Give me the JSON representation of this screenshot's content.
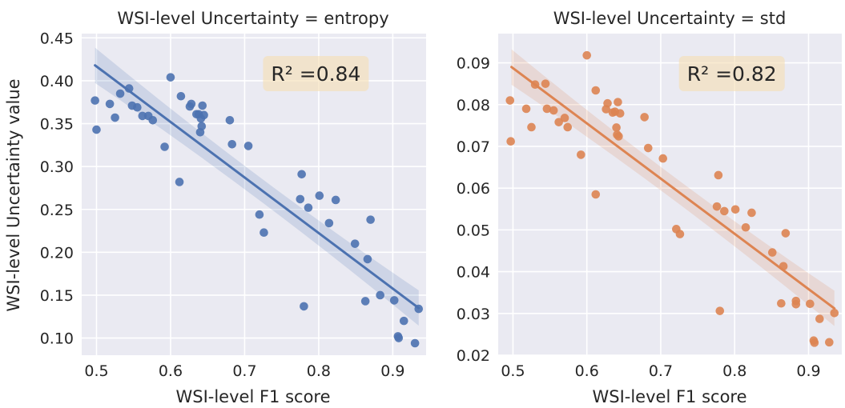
{
  "figure": {
    "ylabel": "WSI-level Uncertainty value"
  },
  "colors": {
    "background": "#eaeaf2",
    "grid": "#ffffff",
    "blue": "#4c72b0",
    "orange": "#dd8452",
    "annotation_bg": "#f5deb3"
  },
  "chart_data": [
    {
      "type": "scatter",
      "title": "WSI-level Uncertainty = entropy",
      "xlabel": "WSI-level F1 score",
      "ylabel": "WSI-level Uncertainty value",
      "annotation": "R² =0.84",
      "xlim": [
        0.48,
        0.945
      ],
      "ylim": [
        0.08,
        0.455
      ],
      "xticks": [
        0.5,
        0.6,
        0.7,
        0.8,
        0.9
      ],
      "xtick_labels": [
        "0.5",
        "0.6",
        "0.7",
        "0.8",
        "0.9"
      ],
      "yticks": [
        0.1,
        0.15,
        0.2,
        0.25,
        0.3,
        0.35,
        0.4,
        0.45
      ],
      "ytick_labels": [
        "0.10",
        "0.15",
        "0.20",
        "0.25",
        "0.30",
        "0.35",
        "0.40",
        "0.45"
      ],
      "grid": true,
      "color": "#4c72b0",
      "regression": {
        "x_start": 0.498,
        "y_start": 0.418,
        "x_end": 0.935,
        "y_end": 0.135
      },
      "points": [
        [
          0.498,
          0.377
        ],
        [
          0.5,
          0.343
        ],
        [
          0.518,
          0.373
        ],
        [
          0.525,
          0.357
        ],
        [
          0.532,
          0.385
        ],
        [
          0.544,
          0.391
        ],
        [
          0.548,
          0.371
        ],
        [
          0.555,
          0.369
        ],
        [
          0.562,
          0.359
        ],
        [
          0.57,
          0.359
        ],
        [
          0.576,
          0.354
        ],
        [
          0.592,
          0.323
        ],
        [
          0.6,
          0.404
        ],
        [
          0.612,
          0.282
        ],
        [
          0.614,
          0.382
        ],
        [
          0.626,
          0.37
        ],
        [
          0.628,
          0.373
        ],
        [
          0.635,
          0.361
        ],
        [
          0.638,
          0.361
        ],
        [
          0.64,
          0.34
        ],
        [
          0.641,
          0.356
        ],
        [
          0.642,
          0.347
        ],
        [
          0.643,
          0.371
        ],
        [
          0.645,
          0.36
        ],
        [
          0.68,
          0.354
        ],
        [
          0.683,
          0.326
        ],
        [
          0.705,
          0.324
        ],
        [
          0.72,
          0.244
        ],
        [
          0.726,
          0.223
        ],
        [
          0.775,
          0.262
        ],
        [
          0.777,
          0.291
        ],
        [
          0.78,
          0.137
        ],
        [
          0.786,
          0.252
        ],
        [
          0.801,
          0.266
        ],
        [
          0.814,
          0.234
        ],
        [
          0.823,
          0.261
        ],
        [
          0.849,
          0.21
        ],
        [
          0.863,
          0.143
        ],
        [
          0.866,
          0.192
        ],
        [
          0.87,
          0.238
        ],
        [
          0.883,
          0.15
        ],
        [
          0.902,
          0.144
        ],
        [
          0.907,
          0.102
        ],
        [
          0.908,
          0.1
        ],
        [
          0.915,
          0.12
        ],
        [
          0.93,
          0.094
        ],
        [
          0.935,
          0.134
        ]
      ]
    },
    {
      "type": "scatter",
      "title": "WSI-level Uncertainty = std",
      "xlabel": "WSI-level F1 score",
      "ylabel": "",
      "annotation": "R² =0.82",
      "xlim": [
        0.48,
        0.945
      ],
      "ylim": [
        0.02,
        0.097
      ],
      "xticks": [
        0.5,
        0.6,
        0.7,
        0.8,
        0.9
      ],
      "xtick_labels": [
        "0.5",
        "0.6",
        "0.7",
        "0.8",
        "0.9"
      ],
      "yticks": [
        0.02,
        0.03,
        0.04,
        0.05,
        0.06,
        0.07,
        0.08,
        0.09
      ],
      "ytick_labels": [
        "0.02",
        "0.03",
        "0.04",
        "0.05",
        "0.06",
        "0.07",
        "0.08",
        "0.09"
      ],
      "grid": true,
      "color": "#dd8452",
      "regression": {
        "x_start": 0.498,
        "y_start": 0.089,
        "x_end": 0.935,
        "y_end": 0.0312
      },
      "points": [
        [
          0.496,
          0.081
        ],
        [
          0.497,
          0.0712
        ],
        [
          0.518,
          0.079
        ],
        [
          0.525,
          0.0746
        ],
        [
          0.53,
          0.0848
        ],
        [
          0.544,
          0.085
        ],
        [
          0.546,
          0.079
        ],
        [
          0.555,
          0.0786
        ],
        [
          0.562,
          0.0758
        ],
        [
          0.57,
          0.0768
        ],
        [
          0.574,
          0.0746
        ],
        [
          0.592,
          0.068
        ],
        [
          0.6,
          0.0918
        ],
        [
          0.612,
          0.0585
        ],
        [
          0.612,
          0.0834
        ],
        [
          0.626,
          0.0789
        ],
        [
          0.628,
          0.0803
        ],
        [
          0.635,
          0.0781
        ],
        [
          0.638,
          0.0783
        ],
        [
          0.64,
          0.0745
        ],
        [
          0.641,
          0.0728
        ],
        [
          0.642,
          0.0806
        ],
        [
          0.643,
          0.0724
        ],
        [
          0.645,
          0.0779
        ],
        [
          0.678,
          0.077
        ],
        [
          0.683,
          0.0696
        ],
        [
          0.703,
          0.0671
        ],
        [
          0.721,
          0.0502
        ],
        [
          0.726,
          0.049
        ],
        [
          0.776,
          0.0556
        ],
        [
          0.778,
          0.0631
        ],
        [
          0.78,
          0.0306
        ],
        [
          0.786,
          0.0545
        ],
        [
          0.801,
          0.0549
        ],
        [
          0.815,
          0.0506
        ],
        [
          0.823,
          0.0541
        ],
        [
          0.851,
          0.0446
        ],
        [
          0.863,
          0.0324
        ],
        [
          0.866,
          0.0413
        ],
        [
          0.869,
          0.0492
        ],
        [
          0.883,
          0.033
        ],
        [
          0.883,
          0.0322
        ],
        [
          0.902,
          0.0323
        ],
        [
          0.907,
          0.0235
        ],
        [
          0.908,
          0.023
        ],
        [
          0.915,
          0.0287
        ],
        [
          0.928,
          0.0231
        ],
        [
          0.935,
          0.0301
        ]
      ]
    }
  ]
}
